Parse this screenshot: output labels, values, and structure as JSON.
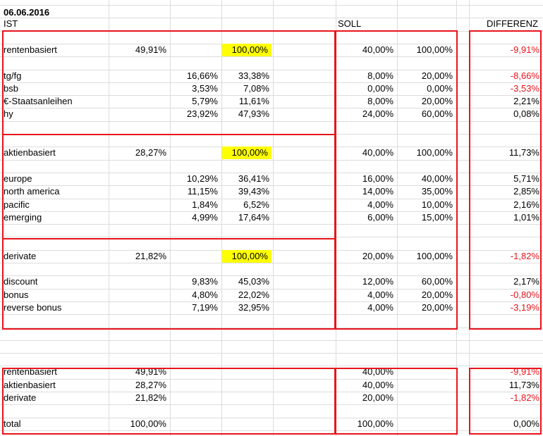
{
  "header": {
    "date": "06.06.2016",
    "ist_label": "IST",
    "soll_label": "SOLL",
    "differenz_label": "DIFFERENZ"
  },
  "colors": {
    "border_red": "#e8141b",
    "highlight_yellow": "#ffff00",
    "negative_text": "#e8141b",
    "gridline": "#dcdcdc"
  },
  "rows": [
    {
      "row": 4,
      "label": "rentenbasiert",
      "b": "49,91%",
      "d": "100,00%",
      "d_highlight": true,
      "f": "40,00%",
      "g": "100,00%",
      "i": "-9,91%",
      "i_negative": true
    },
    {
      "row": 6,
      "label": "tg/fg",
      "c": "16,66%",
      "d": "33,38%",
      "f": "8,00%",
      "g": "20,00%",
      "i": "-8,66%",
      "i_negative": true
    },
    {
      "row": 7,
      "label": "bsb",
      "c": "3,53%",
      "d": "7,08%",
      "f": "0,00%",
      "g": "0,00%",
      "i": "-3,53%",
      "i_negative": true
    },
    {
      "row": 8,
      "label": "€-Staatsanleihen",
      "c": "5,79%",
      "d": "11,61%",
      "f": "8,00%",
      "g": "20,00%",
      "i": "2,21%"
    },
    {
      "row": 9,
      "label": "hy",
      "c": "23,92%",
      "d": "47,93%",
      "f": "24,00%",
      "g": "60,00%",
      "i": "0,08%"
    },
    {
      "row": 12,
      "label": "aktienbasiert",
      "b": "28,27%",
      "d": "100,00%",
      "d_highlight": true,
      "f": "40,00%",
      "g": "100,00%",
      "i": "11,73%"
    },
    {
      "row": 14,
      "label": "europe",
      "c": "10,29%",
      "d": "36,41%",
      "f": "16,00%",
      "g": "40,00%",
      "i": "5,71%"
    },
    {
      "row": 15,
      "label": "north america",
      "c": "11,15%",
      "d": "39,43%",
      "f": "14,00%",
      "g": "35,00%",
      "i": "2,85%"
    },
    {
      "row": 16,
      "label": "pacific",
      "c": "1,84%",
      "d": "6,52%",
      "f": "4,00%",
      "g": "10,00%",
      "i": "2,16%"
    },
    {
      "row": 17,
      "label": "emerging",
      "c": "4,99%",
      "d": "17,64%",
      "f": "6,00%",
      "g": "15,00%",
      "i": "1,01%"
    },
    {
      "row": 20,
      "label": "derivate",
      "b": "21,82%",
      "d": "100,00%",
      "d_highlight": true,
      "f": "20,00%",
      "g": "100,00%",
      "i": "-1,82%",
      "i_negative": true
    },
    {
      "row": 22,
      "label": "discount",
      "c": "9,83%",
      "d": "45,03%",
      "f": "12,00%",
      "g": "60,00%",
      "i": "2,17%"
    },
    {
      "row": 23,
      "label": "bonus",
      "c": "4,80%",
      "d": "22,02%",
      "f": "4,00%",
      "g": "20,00%",
      "i": "-0,80%",
      "i_negative": true
    },
    {
      "row": 24,
      "label": "reverse bonus",
      "c": "7,19%",
      "d": "32,95%",
      "f": "4,00%",
      "g": "20,00%",
      "i": "-3,19%",
      "i_negative": true
    },
    {
      "row": 29,
      "label": "rentenbasiert",
      "b": "49,91%",
      "f": "40,00%",
      "i": "-9,91%",
      "i_negative": true
    },
    {
      "row": 30,
      "label": "aktienbasiert",
      "b": "28,27%",
      "f": "40,00%",
      "i": "11,73%"
    },
    {
      "row": 31,
      "label": "derivate",
      "b": "21,82%",
      "f": "20,00%",
      "i": "-1,82%",
      "i_negative": true
    },
    {
      "row": 33,
      "label": "total",
      "b": "100,00%",
      "f": "100,00%",
      "i": "0,00%"
    }
  ]
}
